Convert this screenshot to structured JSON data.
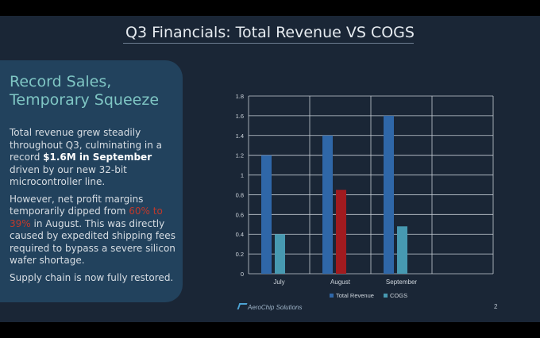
{
  "slide": {
    "title": "Q3 Financials: Total Revenue VS COGS",
    "page_number": "2",
    "logo_text": "AeroChip Solutions"
  },
  "panel": {
    "heading": "Record Sales, Temporary Squeeze",
    "p1_part1": "Total revenue grew steadily throughout Q3, culminating in a record ",
    "p1_bold": "$1.6M in September",
    "p1_part2": " driven by our new 32-bit microcontroller line.",
    "p2_part1": "However, net profit margins temporarily dipped from ",
    "p2_highlight": "60% to 39%",
    "p2_part2": " in August. This was directly caused by expedited shipping fees required to bypass a severe silicon wafer shortage.",
    "p3": "Supply chain is now fully restored."
  },
  "colors": {
    "revenue": "#2f67a8",
    "cogs": "#4799b1",
    "highlight": "#a11b1f",
    "axis": "#c4ccd4"
  },
  "chart_data": {
    "type": "bar",
    "categories": [
      "July",
      "August",
      "September",
      ""
    ],
    "series": [
      {
        "name": "Total Revenue",
        "values": [
          1.2,
          1.4,
          1.6,
          null
        ]
      },
      {
        "name": "COGS",
        "values": [
          0.4,
          0.85,
          0.48,
          null
        ]
      }
    ],
    "highlight": {
      "series": 1,
      "index": 1
    },
    "ylim": [
      0,
      1.8
    ],
    "yticks": [
      0,
      0.2,
      0.4,
      0.6,
      0.8,
      1,
      1.2,
      1.4,
      1.6,
      1.8
    ],
    "grid": true,
    "legend": "bottom"
  }
}
